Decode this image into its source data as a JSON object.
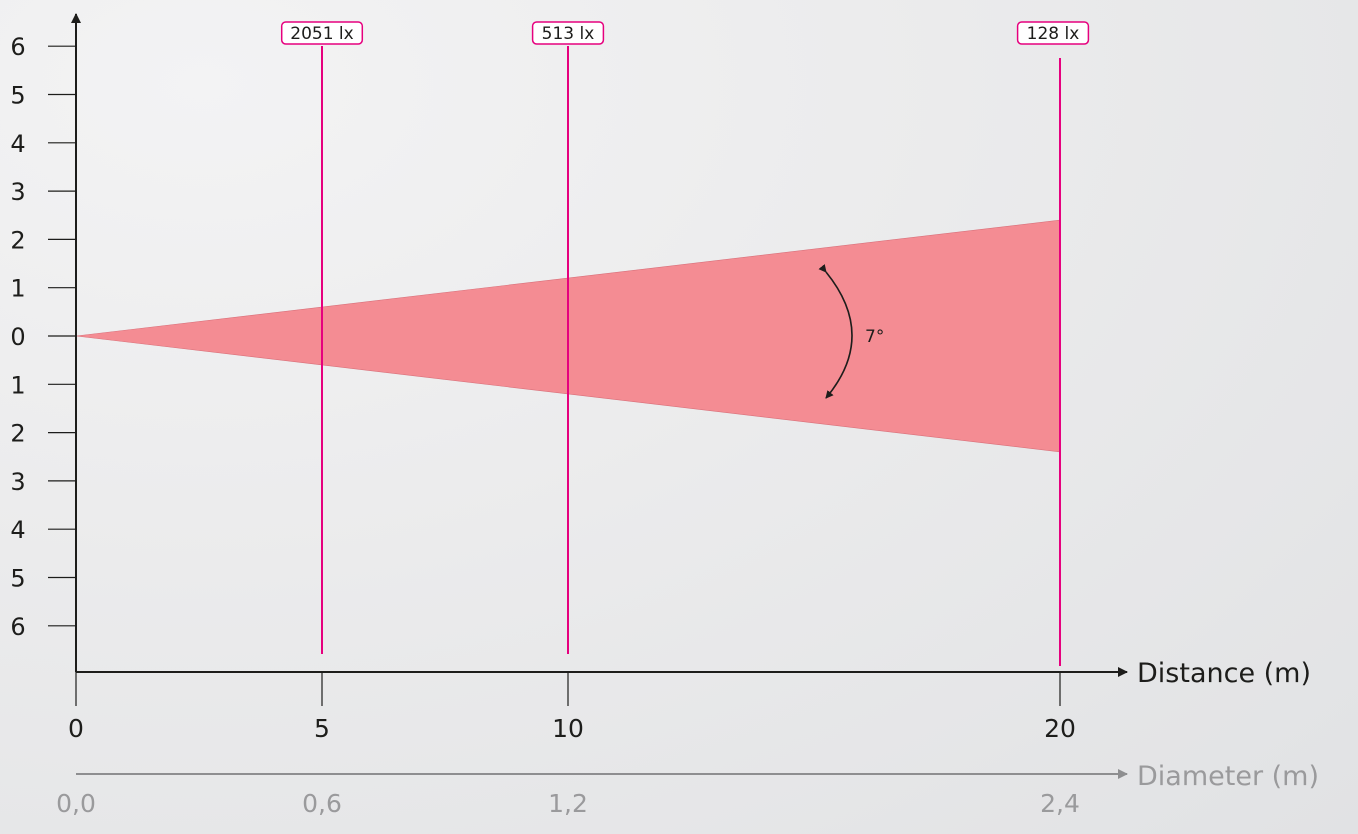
{
  "chart_data": {
    "type": "area",
    "title": "",
    "beam_angle_label": "7°",
    "colors": {
      "beam": "#f48c93",
      "marker": "#e6007e",
      "axis": "#1d1d1b",
      "secondary": "#8e8e90"
    },
    "x_axis": {
      "label": "Distance (m)",
      "range": [
        0,
        20
      ],
      "ticks": [
        0,
        5,
        10,
        20
      ],
      "tick_labels": [
        "0",
        "5",
        "10",
        "20"
      ]
    },
    "y_axis": {
      "range": [
        -6,
        6
      ],
      "ticks": [
        6,
        5,
        4,
        3,
        2,
        1,
        0,
        -1,
        -2,
        -3,
        -4,
        -5,
        -6
      ],
      "tick_labels": [
        "6",
        "5",
        "4",
        "3",
        "2",
        "1",
        "0",
        "1",
        "2",
        "3",
        "4",
        "5",
        "6"
      ]
    },
    "diameter_axis": {
      "label": "Diameter (m)",
      "tick_labels": [
        "0,0",
        "0,6",
        "1,2",
        "2,4"
      ]
    },
    "beam": {
      "distance": [
        0,
        5,
        10,
        20
      ],
      "half_width": [
        0,
        0.6,
        1.2,
        2.4
      ]
    },
    "illuminance_markers": [
      {
        "distance": 5,
        "label": "2051 lx"
      },
      {
        "distance": 10,
        "label": "513 lx"
      },
      {
        "distance": 20,
        "label": "128 lx"
      }
    ]
  }
}
